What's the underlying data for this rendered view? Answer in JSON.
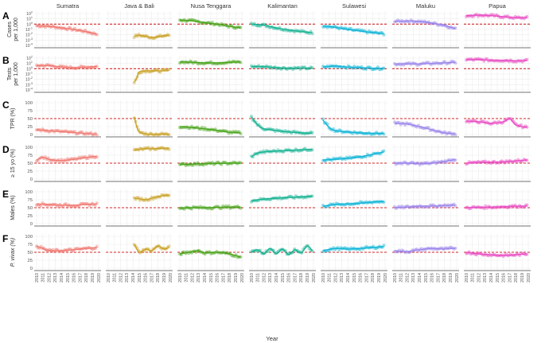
{
  "figure": {
    "xlabel": "Year",
    "reference_color": "#d62728",
    "colors": {
      "Sumatra": "#f07b73",
      "Java & Bali": "#c9a227",
      "Nusa Tenggara": "#4aa51c",
      "Kalimantan": "#1ab394",
      "Sulawesi": "#12b5d8",
      "Maluku": "#9b86ec",
      "Papua": "#e84fc4"
    }
  },
  "chart_data": {
    "type": "scatter",
    "facet_columns": [
      "Sumatra",
      "Java & Bali",
      "Nusa Tenggara",
      "Kalimantan",
      "Sulawesi",
      "Maluku",
      "Papua"
    ],
    "years": [
      2010,
      2011,
      2012,
      2013,
      2014,
      2015,
      2016,
      2017,
      2018,
      2019,
      2020
    ],
    "rows": [
      {
        "letter": "A",
        "ylabel_lines": [
          "Cases",
          "per 1,000"
        ],
        "scale": "log",
        "yticks": [
          "10^-4",
          "10^-3",
          "10^-2",
          "10^-1",
          "10^0",
          "10^1",
          "10^2"
        ],
        "ylim": [
          -4,
          2
        ],
        "reference": 0,
        "series": [
          {
            "name": "Sumatra",
            "x": [
              2010,
              2012,
              2014,
              2016,
              2018,
              2019.7
            ],
            "y": [
              -0.3,
              -0.4,
              -0.7,
              -1.0,
              -1.4,
              -1.9
            ]
          },
          {
            "name": "Java & Bali",
            "x": [
              2014.2,
              2015,
              2016,
              2017,
              2018,
              2019,
              2019.8
            ],
            "y": [
              -2.3,
              -2.1,
              -2.3,
              -2.5,
              -2.4,
              -2.2,
              -2.1
            ]
          },
          {
            "name": "Nusa Tenggara",
            "x": [
              2010,
              2012,
              2014,
              2016,
              2018,
              2019.8
            ],
            "y": [
              0.8,
              0.6,
              0.3,
              0.0,
              -0.4,
              -0.7
            ]
          },
          {
            "name": "Kalimantan",
            "x": [
              2010,
              2012,
              2014,
              2016,
              2018,
              2019.8
            ],
            "y": [
              0.0,
              -0.2,
              -0.7,
              -1.1,
              -1.4,
              -1.6
            ]
          },
          {
            "name": "Sulawesi",
            "x": [
              2010,
              2012,
              2014,
              2016,
              2018,
              2019.8
            ],
            "y": [
              -0.3,
              -0.6,
              -1.0,
              -1.3,
              -1.6,
              -1.8
            ]
          },
          {
            "name": "Maluku",
            "x": [
              2010,
              2012,
              2014,
              2016,
              2018,
              2019.8
            ],
            "y": [
              0.5,
              0.6,
              0.5,
              0.2,
              -0.2,
              -0.9
            ]
          },
          {
            "name": "Papua",
            "x": [
              2010,
              2012,
              2014,
              2016,
              2018,
              2019.8
            ],
            "y": [
              1.6,
              1.7,
              1.6,
              1.4,
              1.2,
              1.2
            ]
          }
        ]
      },
      {
        "letter": "B",
        "ylabel_lines": [
          "Tests",
          "per 1,000"
        ],
        "scale": "log",
        "yticks": [
          "10^-4",
          "10^-3",
          "10^-2",
          "10^-1",
          "10^0",
          "10^1",
          "10^2"
        ],
        "ylim": [
          -4,
          2
        ],
        "reference": 0,
        "series": [
          {
            "name": "Sumatra",
            "x": [
              2010,
              2012,
              2014,
              2016,
              2018,
              2019.7
            ],
            "y": [
              0.6,
              0.6,
              0.3,
              0.2,
              0.3,
              0.4
            ]
          },
          {
            "name": "Java & Bali",
            "x": [
              2014.2,
              2014.6,
              2015,
              2016,
              2017,
              2018,
              2019,
              2019.8
            ],
            "y": [
              -2.5,
              -1.8,
              -0.6,
              -0.4,
              -0.4,
              -0.4,
              -0.4,
              -0.3
            ]
          },
          {
            "name": "Nusa Tenggara",
            "x": [
              2010,
              2012,
              2014,
              2016,
              2018,
              2019.8
            ],
            "y": [
              1.3,
              1.2,
              1.1,
              1.1,
              1.2,
              1.3
            ]
          },
          {
            "name": "Kalimantan",
            "x": [
              2010,
              2012,
              2014,
              2016,
              2018,
              2019.8
            ],
            "y": [
              0.4,
              0.4,
              0.2,
              0.1,
              0.1,
              0.1
            ]
          },
          {
            "name": "Sulawesi",
            "x": [
              2010,
              2012,
              2014,
              2016,
              2018,
              2019.8
            ],
            "y": [
              0.3,
              0.5,
              0.3,
              0.2,
              0.1,
              0.1
            ]
          },
          {
            "name": "Maluku",
            "x": [
              2010,
              2012,
              2014,
              2016,
              2018,
              2019.8
            ],
            "y": [
              0.9,
              0.9,
              0.9,
              1.0,
              1.1,
              1.2
            ]
          },
          {
            "name": "Papua",
            "x": [
              2010,
              2012,
              2014,
              2016,
              2018,
              2019.8
            ],
            "y": [
              1.7,
              1.7,
              1.6,
              1.6,
              1.5,
              1.5
            ]
          }
        ]
      },
      {
        "letter": "C",
        "ylabel_lines": [
          "TPR (%)"
        ],
        "scale": "linear",
        "yticks": [
          "0",
          "25",
          "50",
          "75",
          "100"
        ],
        "ylim": [
          0,
          100
        ],
        "reference": 50,
        "series": [
          {
            "name": "Sumatra",
            "x": [
              2010,
              2012,
              2014,
              2016,
              2018,
              2019.7
            ],
            "y": [
              15,
              12,
              9,
              6,
              3,
              1
            ]
          },
          {
            "name": "Java & Bali",
            "x": [
              2014.2,
              2014.6,
              2015,
              2016,
              2017,
              2018,
              2019,
              2019.8
            ],
            "y": [
              55,
              25,
              8,
              2,
              1,
              1,
              1,
              1
            ]
          },
          {
            "name": "Nusa Tenggara",
            "x": [
              2010,
              2012,
              2014,
              2016,
              2018,
              2019.8
            ],
            "y": [
              25,
              22,
              18,
              13,
              7,
              5
            ]
          },
          {
            "name": "Kalimantan",
            "x": [
              2010,
              2011,
              2012,
              2014,
              2016,
              2018,
              2019.8
            ],
            "y": [
              55,
              30,
              18,
              12,
              8,
              5,
              4
            ]
          },
          {
            "name": "Sulawesi",
            "x": [
              2010,
              2011,
              2012,
              2014,
              2016,
              2018,
              2019.8
            ],
            "y": [
              45,
              22,
              12,
              8,
              5,
              4,
              3
            ]
          },
          {
            "name": "Maluku",
            "x": [
              2010,
              2012,
              2014,
              2016,
              2018,
              2019.8
            ],
            "y": [
              35,
              33,
              25,
              15,
              5,
              2
            ]
          },
          {
            "name": "Papua",
            "x": [
              2010,
              2012,
              2014,
              2016,
              2017,
              2018,
              2019.8
            ],
            "y": [
              42,
              40,
              35,
              40,
              50,
              30,
              22
            ]
          }
        ]
      },
      {
        "letter": "D",
        "ylabel_lines": [
          "≥ 15 yo (%)"
        ],
        "scale": "linear",
        "yticks": [
          "0",
          "25",
          "50",
          "75",
          "100"
        ],
        "ylim": [
          0,
          100
        ],
        "reference": 50,
        "series": [
          {
            "name": "Sumatra",
            "x": [
              2010,
              2011,
              2012,
              2014,
              2016,
              2018,
              2019.7
            ],
            "y": [
              60,
              68,
              62,
              58,
              62,
              68,
              72
            ]
          },
          {
            "name": "Java & Bali",
            "x": [
              2014.2,
              2015,
              2016,
              2017,
              2018,
              2019,
              2019.8
            ],
            "y": [
              90,
              93,
              95,
              95,
              96,
              97,
              97
            ]
          },
          {
            "name": "Nusa Tenggara",
            "x": [
              2010,
              2012,
              2014,
              2016,
              2018,
              2019.8
            ],
            "y": [
              45,
              47,
              48,
              49,
              50,
              50
            ]
          },
          {
            "name": "Kalimantan",
            "x": [
              2010,
              2011,
              2012,
              2014,
              2016,
              2018,
              2019.8
            ],
            "y": [
              70,
              82,
              85,
              88,
              90,
              92,
              94
            ]
          },
          {
            "name": "Sulawesi",
            "x": [
              2010,
              2012,
              2014,
              2016,
              2018,
              2019.8
            ],
            "y": [
              60,
              62,
              65,
              70,
              78,
              85
            ]
          },
          {
            "name": "Maluku",
            "x": [
              2010,
              2012,
              2014,
              2016,
              2018,
              2019.8
            ],
            "y": [
              50,
              50,
              48,
              50,
              55,
              62
            ]
          },
          {
            "name": "Papua",
            "x": [
              2010,
              2012,
              2014,
              2016,
              2018,
              2019.8
            ],
            "y": [
              50,
              52,
              53,
              54,
              57,
              60
            ]
          }
        ]
      },
      {
        "letter": "E",
        "ylabel_lines": [
          "Males (%)"
        ],
        "scale": "linear",
        "yticks": [
          "0",
          "25",
          "50",
          "75",
          "100"
        ],
        "ylim": [
          0,
          100
        ],
        "reference": 50,
        "series": [
          {
            "name": "Sumatra",
            "x": [
              2010,
              2012,
              2014,
              2016,
              2018,
              2019.7
            ],
            "y": [
              62,
              60,
              58,
              58,
              60,
              62
            ]
          },
          {
            "name": "Java & Bali",
            "x": [
              2014.2,
              2015,
              2016,
              2017,
              2018,
              2019,
              2019.8
            ],
            "y": [
              80,
              78,
              75,
              80,
              85,
              88,
              90
            ]
          },
          {
            "name": "Nusa Tenggara",
            "x": [
              2010,
              2012,
              2014,
              2016,
              2018,
              2019.8
            ],
            "y": [
              49,
              50,
              50,
              51,
              52,
              52
            ]
          },
          {
            "name": "Kalimantan",
            "x": [
              2010,
              2012,
              2014,
              2016,
              2018,
              2019.8
            ],
            "y": [
              72,
              77,
              80,
              82,
              84,
              86
            ]
          },
          {
            "name": "Sulawesi",
            "x": [
              2010,
              2012,
              2014,
              2016,
              2018,
              2019.8
            ],
            "y": [
              55,
              60,
              62,
              64,
              68,
              70
            ]
          },
          {
            "name": "Maluku",
            "x": [
              2010,
              2012,
              2014,
              2016,
              2018,
              2019.8
            ],
            "y": [
              50,
              52,
              55,
              55,
              57,
              58
            ]
          },
          {
            "name": "Papua",
            "x": [
              2010,
              2012,
              2014,
              2016,
              2018,
              2019.8
            ],
            "y": [
              50,
              51,
              52,
              53,
              55,
              55
            ]
          }
        ]
      },
      {
        "letter": "F",
        "ylabel_lines": [
          "P. vivax (%)"
        ],
        "scale": "linear",
        "yticks": [
          "0",
          "25",
          "50",
          "75",
          "100"
        ],
        "ylim": [
          0,
          100
        ],
        "reference": 50,
        "series": [
          {
            "name": "Sumatra",
            "x": [
              2010,
              2011,
              2012,
              2014,
              2016,
              2018,
              2019.7
            ],
            "y": [
              70,
              62,
              55,
              55,
              58,
              62,
              65
            ]
          },
          {
            "name": "Java & Bali",
            "x": [
              2014.2,
              2015,
              2016,
              2017,
              2018,
              2019,
              2019.8
            ],
            "y": [
              75,
              50,
              60,
              55,
              70,
              60,
              65
            ]
          },
          {
            "name": "Nusa Tenggara",
            "x": [
              2010,
              2012,
              2013,
              2014,
              2016,
              2018,
              2019.8
            ],
            "y": [
              45,
              52,
              55,
              48,
              50,
              45,
              35
            ]
          },
          {
            "name": "Kalimantan",
            "x": [
              2010,
              2011,
              2012,
              2013,
              2014,
              2015,
              2016,
              2017,
              2018,
              2019,
              2019.8
            ],
            "y": [
              50,
              58,
              45,
              62,
              45,
              60,
              42,
              58,
              48,
              70,
              55
            ]
          },
          {
            "name": "Sulawesi",
            "x": [
              2010,
              2012,
              2014,
              2016,
              2018,
              2019.8
            ],
            "y": [
              55,
              62,
              60,
              62,
              65,
              68
            ]
          },
          {
            "name": "Maluku",
            "x": [
              2010,
              2012,
              2014,
              2016,
              2018,
              2019.8
            ],
            "y": [
              55,
              52,
              58,
              62,
              60,
              63
            ]
          },
          {
            "name": "Papua",
            "x": [
              2010,
              2012,
              2014,
              2016,
              2018,
              2019.8
            ],
            "y": [
              50,
              45,
              42,
              40,
              42,
              45
            ]
          }
        ]
      }
    ]
  }
}
